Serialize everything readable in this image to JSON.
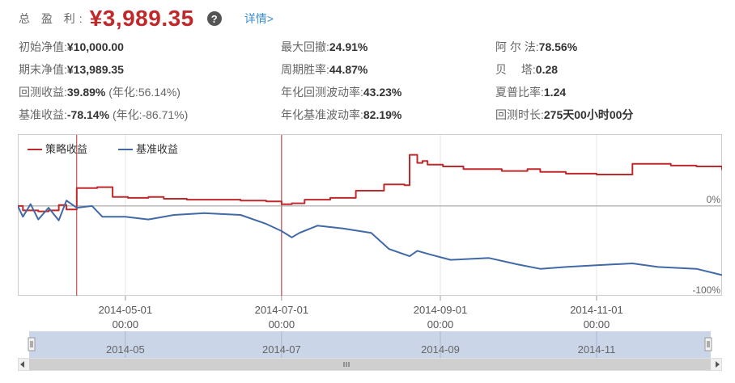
{
  "header": {
    "total_label": "总 盈 利:",
    "total_value": "¥3,989.35",
    "help_icon": "question-circle-icon",
    "detail_link": "详情>"
  },
  "stats": {
    "col1": [
      {
        "label": "初始净值:",
        "value": "¥10,000.00",
        "extra": ""
      },
      {
        "label": "期末净值:",
        "value": "¥13,989.35",
        "extra": ""
      },
      {
        "label": "回测收益:",
        "value": "39.89%",
        "extra": "(年化:56.14%)"
      },
      {
        "label": "基准收益:",
        "value": "-78.14%",
        "extra": "(年化:-86.71%)"
      }
    ],
    "col2": [
      {
        "label": "最大回撤:",
        "value": "24.91%"
      },
      {
        "label": "周期胜率:",
        "value": "44.87%"
      },
      {
        "label": "年化回测波动率:",
        "value": "43.23%"
      },
      {
        "label": "年化基准波动率:",
        "value": "82.19%"
      }
    ],
    "col3": [
      {
        "label": "阿 尔 法:",
        "value": "78.56%"
      },
      {
        "label": "贝　 塔:",
        "value": "0.28"
      },
      {
        "label": "夏普比率:",
        "value": "1.24"
      },
      {
        "label": "回测时长:",
        "value": "275天00小时00分"
      }
    ]
  },
  "chart_data": {
    "type": "line",
    "legend_position": "top-left",
    "series": [
      {
        "name": "策略收益",
        "color": "#c0292b",
        "points": [
          [
            "2014-03-20",
            0
          ],
          [
            "2014-03-22",
            -5
          ],
          [
            "2014-03-28",
            -6
          ],
          [
            "2014-04-01",
            -5
          ],
          [
            "2014-04-05",
            1
          ],
          [
            "2014-04-08",
            -4
          ],
          [
            "2014-04-12",
            20
          ],
          [
            "2014-04-20",
            21
          ],
          [
            "2014-04-26",
            10
          ],
          [
            "2014-05-02",
            9
          ],
          [
            "2014-05-10",
            10
          ],
          [
            "2014-05-16",
            8
          ],
          [
            "2014-05-25",
            7
          ],
          [
            "2014-06-05",
            7
          ],
          [
            "2014-06-15",
            6
          ],
          [
            "2014-06-25",
            5
          ],
          [
            "2014-07-01",
            2
          ],
          [
            "2014-07-05",
            3
          ],
          [
            "2014-07-10",
            7
          ],
          [
            "2014-07-20",
            9
          ],
          [
            "2014-07-30",
            17
          ],
          [
            "2014-08-10",
            24
          ],
          [
            "2014-08-18",
            23
          ],
          [
            "2014-08-20",
            57
          ],
          [
            "2014-08-23",
            48
          ],
          [
            "2014-08-25",
            50
          ],
          [
            "2014-08-27",
            46
          ],
          [
            "2014-09-02",
            44
          ],
          [
            "2014-09-10",
            41
          ],
          [
            "2014-09-25",
            39
          ],
          [
            "2014-10-05",
            41
          ],
          [
            "2014-10-10",
            38
          ],
          [
            "2014-10-20",
            36
          ],
          [
            "2014-11-01",
            35
          ],
          [
            "2014-11-10",
            35
          ],
          [
            "2014-11-15",
            47
          ],
          [
            "2014-11-30",
            45
          ],
          [
            "2014-12-10",
            44
          ],
          [
            "2014-12-20",
            40
          ]
        ]
      },
      {
        "name": "基准收益",
        "color": "#4169a6",
        "points": [
          [
            "2014-03-20",
            0
          ],
          [
            "2014-03-22",
            -12
          ],
          [
            "2014-03-25",
            2
          ],
          [
            "2014-03-28",
            -15
          ],
          [
            "2014-04-01",
            -2
          ],
          [
            "2014-04-05",
            -16
          ],
          [
            "2014-04-08",
            6
          ],
          [
            "2014-04-12",
            -2
          ],
          [
            "2014-04-18",
            0
          ],
          [
            "2014-04-22",
            -12
          ],
          [
            "2014-05-01",
            -12
          ],
          [
            "2014-05-10",
            -15
          ],
          [
            "2014-05-20",
            -10
          ],
          [
            "2014-06-01",
            -8
          ],
          [
            "2014-06-15",
            -10
          ],
          [
            "2014-06-25",
            -20
          ],
          [
            "2014-07-01",
            -28
          ],
          [
            "2014-07-05",
            -35
          ],
          [
            "2014-07-08",
            -30
          ],
          [
            "2014-07-15",
            -22
          ],
          [
            "2014-07-25",
            -25
          ],
          [
            "2014-08-05",
            -30
          ],
          [
            "2014-08-12",
            -48
          ],
          [
            "2014-08-20",
            -56
          ],
          [
            "2014-08-23",
            -50
          ],
          [
            "2014-08-28",
            -54
          ],
          [
            "2014-09-05",
            -60
          ],
          [
            "2014-09-20",
            -58
          ],
          [
            "2014-10-01",
            -65
          ],
          [
            "2014-10-10",
            -70
          ],
          [
            "2014-10-20",
            -68
          ],
          [
            "2014-11-01",
            -66
          ],
          [
            "2014-11-15",
            -64
          ],
          [
            "2014-11-25",
            -68
          ],
          [
            "2014-12-10",
            -70
          ],
          [
            "2014-12-20",
            -77
          ]
        ]
      }
    ],
    "x_range": [
      "2014-03-20",
      "2014-12-20"
    ],
    "y_range": [
      -100,
      80
    ],
    "zero_label": "0%",
    "min_label": "-100%",
    "x_ticks": [
      {
        "date": "2014-05-01",
        "label": "2014-05-01",
        "time": "00:00"
      },
      {
        "date": "2014-07-01",
        "label": "2014-07-01",
        "time": "00:00"
      },
      {
        "date": "2014-09-01",
        "label": "2014-09-01",
        "time": "00:00"
      },
      {
        "date": "2014-11-01",
        "label": "2014-11-01",
        "time": "00:00"
      }
    ],
    "markers": [
      "2014-04-12",
      "2014-07-01"
    ],
    "navigator_labels": [
      {
        "date": "2014-05-01",
        "label": "2014-05"
      },
      {
        "date": "2014-07-01",
        "label": "2014-07"
      },
      {
        "date": "2014-09-01",
        "label": "2014-09"
      },
      {
        "date": "2014-11-01",
        "label": "2014-11"
      }
    ],
    "colors": {
      "grid": "#e6e6e6",
      "marker": "#c0292b",
      "zero": "#999999",
      "navigator": "#b8c7e0"
    }
  }
}
